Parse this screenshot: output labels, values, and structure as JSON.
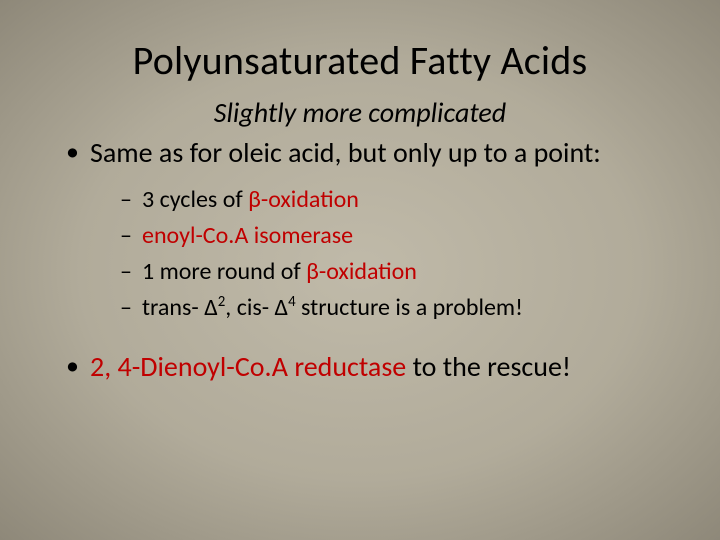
{
  "title": "Polyunsaturated Fatty Acids",
  "subtitle": "Slightly more complicated",
  "bullet1": "Same as for oleic acid, but only up to a point:",
  "sub1_a": "3 cycles of ",
  "sub1_b": "β",
  "sub1_c": "-oxidation",
  "sub2": "enoyl-Co.A isomerase",
  "sub3_a": "1 more round of ",
  "sub3_b": "β",
  "sub3_c": "-oxidation",
  "sub4_a": "trans- ",
  "sub4_b": "Δ",
  "sub4_c": "2",
  "sub4_d": ", cis- ",
  "sub4_e": "Δ",
  "sub4_f": "4",
  "sub4_g": " structure is a problem!",
  "bullet2_a": "2, 4-Dienoyl-Co.A reductase",
  "bullet2_b": " to the rescue!",
  "colors": {
    "text": "#000000",
    "accent_red": "#c00000",
    "bg_center": "#c0baa9",
    "bg_edge": "#8e8879"
  },
  "fonts": {
    "family": "Calibri",
    "title_size_pt": 40,
    "subtitle_size_pt": 28,
    "body_size_pt": 28,
    "sub_size_pt": 24
  }
}
